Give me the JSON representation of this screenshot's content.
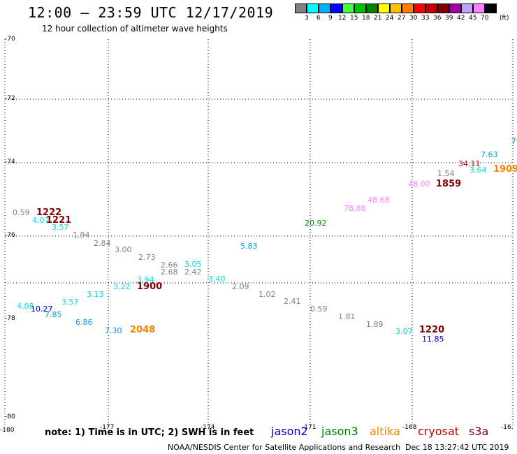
{
  "header": {
    "title": "12:00 – 23:59 UTC 12/17/2019",
    "subtitle": "12 hour collection of altimeter wave heights"
  },
  "legend": {
    "unit_label": "(ft)",
    "bins": [
      {
        "label": "3",
        "color": "#808080"
      },
      {
        "label": "6",
        "color": "#00ffff"
      },
      {
        "label": "9",
        "color": "#00b0ff"
      },
      {
        "label": "12",
        "color": "#0000ff"
      },
      {
        "label": "15",
        "color": "#40ff40"
      },
      {
        "label": "18",
        "color": "#00c000"
      },
      {
        "label": "21",
        "color": "#008000"
      },
      {
        "label": "24",
        "color": "#ffff00"
      },
      {
        "label": "27",
        "color": "#ffc000"
      },
      {
        "label": "30",
        "color": "#ff8000"
      },
      {
        "label": "33",
        "color": "#ff0000"
      },
      {
        "label": "36",
        "color": "#c00000"
      },
      {
        "label": "39",
        "color": "#800000"
      },
      {
        "label": "42",
        "color": "#a000a0"
      },
      {
        "label": "45",
        "color": "#c0a0ff"
      },
      {
        "label": "70",
        "color": "#ff80ff"
      },
      {
        "label": "",
        "color": "#000000"
      }
    ]
  },
  "map": {
    "lat_labels": [
      "-70",
      "-72",
      "-74",
      "-76",
      "-78",
      "-80"
    ],
    "lon_labels": [
      "-180",
      "-177",
      "-174",
      "-171",
      "-168",
      "-16."
    ]
  },
  "observations": [
    {
      "text": "0.59",
      "color": "#808080"
    },
    {
      "text": "4.07",
      "color": "#00e0e0"
    },
    {
      "text": "3.57",
      "color": "#00e0e0"
    },
    {
      "text": "1.94",
      "color": "#808080"
    },
    {
      "text": "2.84",
      "color": "#808080"
    },
    {
      "text": "3.00",
      "color": "#808080"
    },
    {
      "text": "2.73",
      "color": "#808080"
    },
    {
      "text": "2.66",
      "color": "#808080"
    },
    {
      "text": "2.68",
      "color": "#808080"
    },
    {
      "text": "3.05",
      "color": "#00e0e0"
    },
    {
      "text": "2.42",
      "color": "#808080"
    },
    {
      "text": "3.40",
      "color": "#00e0e0"
    },
    {
      "text": "3.94",
      "color": "#00e0e0"
    },
    {
      "text": "3.22",
      "color": "#00e0e0"
    },
    {
      "text": "3.13",
      "color": "#00e0e0"
    },
    {
      "text": "3.57",
      "color": "#00e0e0"
    },
    {
      "text": "4.08",
      "color": "#00e0e0"
    },
    {
      "text": "10.27",
      "color": "#0000c0"
    },
    {
      "text": "7.85",
      "color": "#00a0e0"
    },
    {
      "text": "6.86",
      "color": "#00a0e0"
    },
    {
      "text": "7.30",
      "color": "#00a0e0"
    },
    {
      "text": "5.83",
      "color": "#00a0e0"
    },
    {
      "text": "2.09",
      "color": "#808080"
    },
    {
      "text": "1.02",
      "color": "#808080"
    },
    {
      "text": "2.41",
      "color": "#808080"
    },
    {
      "text": "0.59",
      "color": "#808080"
    },
    {
      "text": "1.81",
      "color": "#808080"
    },
    {
      "text": "1.89",
      "color": "#808080"
    },
    {
      "text": "3.07",
      "color": "#00e0e0"
    },
    {
      "text": "11.85",
      "color": "#0000c0"
    },
    {
      "text": "20.92",
      "color": "#008000"
    },
    {
      "text": "78.88",
      "color": "#ff80ff"
    },
    {
      "text": "48.68",
      "color": "#ff80ff"
    },
    {
      "text": "48.00",
      "color": "#ff80ff"
    },
    {
      "text": "1.54",
      "color": "#808080"
    },
    {
      "text": "34.11",
      "color": "#c00000"
    },
    {
      "text": "3.64",
      "color": "#00e0e0"
    },
    {
      "text": "7.63",
      "color": "#00a0e0"
    },
    {
      "text": "7",
      "color": "#00a0e0"
    }
  ],
  "time_labels": [
    {
      "text": "1222",
      "color": "#800000"
    },
    {
      "text": "1221",
      "color": "#800000"
    },
    {
      "text": "1900",
      "color": "#800000"
    },
    {
      "text": "2048",
      "color": "#ff8000"
    },
    {
      "text": "1220",
      "color": "#800000"
    },
    {
      "text": "1859",
      "color": "#800000"
    },
    {
      "text": "1909",
      "color": "#ff8000"
    }
  ],
  "footer": {
    "note": "note: 1) Time is in UTC; 2) SWH is in feet",
    "satellites": [
      {
        "name": "jason2",
        "color": "#0000c0"
      },
      {
        "name": "jason3",
        "color": "#008000"
      },
      {
        "name": "altika",
        "color": "#ff8000"
      },
      {
        "name": "cryosat",
        "color": "#c00000"
      },
      {
        "name": "s3a",
        "color": "#800000"
      }
    ],
    "org": "NOAA/NESDIS Center for Satellite Applications and Research",
    "timestamp": "Dec 18 13:27:42 UTC 2019"
  }
}
